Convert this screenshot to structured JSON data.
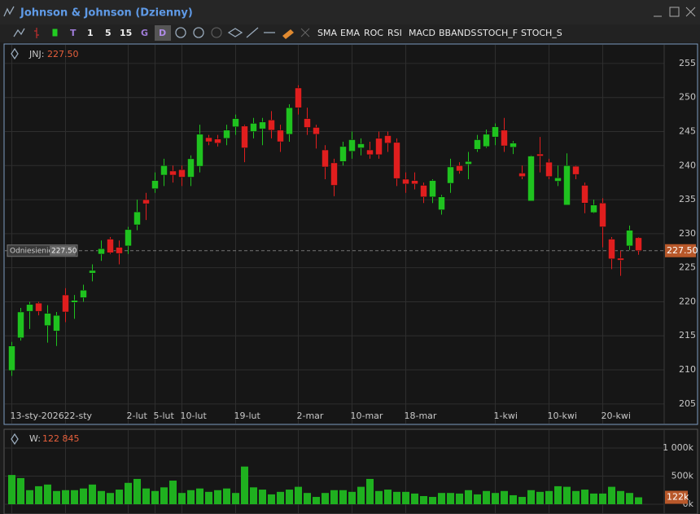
{
  "window": {
    "title": "Johnson & Johnson (Dzienny)"
  },
  "toolbar": {
    "items": [
      "T",
      "1",
      "5",
      "15",
      "G",
      "D",
      "SMA",
      "EMA",
      "ROC",
      "RSI",
      "MACD",
      "BBANDS",
      "STOCH_F",
      "STOCH_S"
    ]
  },
  "chart_data": {
    "type": "candlestick",
    "symbol": "JNJ:",
    "last_price_label": "227.50",
    "categories": [
      "13-sty-2026",
      null,
      null,
      null,
      null,
      null,
      "22-sty",
      null,
      null,
      null,
      null,
      null,
      null,
      "2-lut",
      null,
      null,
      "5-lut",
      null,
      null,
      "10-lut",
      null,
      null,
      null,
      null,
      null,
      "19-lut",
      null,
      null,
      null,
      null,
      null,
      null,
      "2-mar",
      null,
      null,
      null,
      null,
      null,
      "10-mar",
      null,
      null,
      null,
      null,
      null,
      "18-mar",
      null,
      null,
      null,
      null,
      null,
      null,
      null,
      null,
      null,
      "1-kwi",
      null,
      null,
      null,
      null,
      null,
      "10-kwi",
      null,
      null,
      null,
      null,
      null,
      "20-kwi",
      null,
      null,
      null,
      null
    ],
    "open": [
      209.9,
      214.7,
      218.6,
      219.8,
      216.5,
      215.7,
      221.0,
      219.9,
      220.6,
      224.2,
      227.0,
      229.2,
      228.0,
      228.2,
      231.3,
      235.0,
      236.6,
      238.6,
      239.2,
      239.4,
      238.3,
      239.9,
      244.1,
      243.9,
      244.0,
      245.7,
      245.8,
      245.0,
      245.4,
      246.7,
      245.2,
      244.6,
      251.4,
      246.9,
      245.6,
      242.3,
      240.4,
      240.6,
      242.1,
      242.6,
      242.3,
      244.0,
      244.4,
      243.4,
      238.0,
      237.8,
      237.1,
      235.4,
      233.5,
      237.4,
      240.0,
      240.2,
      242.4,
      242.8,
      244.2,
      245.2,
      242.7,
      238.9,
      234.8,
      241.7,
      240.5,
      237.7,
      234.2,
      239.9,
      237.1,
      233.1,
      234.5,
      229.2,
      226.4,
      228.2,
      229.4
    ],
    "high": [
      214.1,
      219.1,
      220.0,
      220.0,
      219.5,
      218.5,
      222.0,
      221.0,
      222.5,
      225.5,
      229.0,
      229.5,
      229.0,
      231.0,
      235.0,
      236.0,
      239.0,
      241.0,
      240.0,
      240.0,
      241.5,
      246.0,
      244.5,
      244.5,
      246.0,
      247.5,
      246.0,
      247.0,
      247.0,
      248.0,
      246.0,
      249.0,
      251.8,
      248.5,
      246.0,
      243.0,
      241.0,
      243.5,
      245.0,
      244.0,
      243.5,
      245.0,
      245.0,
      244.0,
      239.0,
      239.0,
      237.5,
      238.0,
      235.7,
      241.0,
      240.5,
      242.0,
      244.5,
      245.3,
      246.2,
      247.0,
      243.6,
      240.0,
      241.5,
      244.2,
      241.0,
      240.0,
      241.8,
      240.0,
      237.5,
      235.0,
      235.2,
      229.5,
      227.5,
      231.2,
      229.5
    ],
    "low": [
      209.1,
      214.3,
      216.0,
      218.0,
      214.0,
      213.5,
      217.0,
      217.5,
      220.0,
      223.0,
      226.0,
      227.0,
      225.5,
      227.0,
      230.5,
      232.0,
      236.0,
      237.0,
      237.5,
      237.0,
      237.0,
      239.0,
      243.0,
      242.8,
      243.0,
      244.5,
      240.5,
      244.0,
      243.0,
      244.0,
      242.0,
      243.5,
      247.5,
      244.5,
      242.5,
      238.0,
      235.5,
      240.0,
      241.0,
      241.5,
      241.0,
      241.0,
      242.0,
      237.0,
      236.0,
      236.5,
      234.5,
      234.5,
      232.8,
      236.0,
      238.8,
      238.0,
      242.0,
      242.6,
      243.0,
      242.0,
      241.7,
      238.0,
      234.8,
      239.0,
      238.0,
      237.0,
      234.2,
      238.0,
      233.0,
      233.0,
      228.0,
      224.8,
      223.8,
      227.6,
      226.9
    ],
    "close": [
      213.5,
      218.5,
      219.6,
      218.6,
      218.3,
      218.0,
      218.5,
      220.2,
      221.7,
      224.6,
      227.8,
      227.2,
      227.1,
      230.6,
      233.2,
      234.4,
      237.8,
      240.0,
      238.6,
      238.3,
      241.0,
      244.6,
      243.5,
      243.3,
      245.2,
      246.9,
      242.6,
      246.2,
      246.4,
      245.2,
      243.5,
      248.5,
      248.5,
      245.6,
      244.6,
      239.8,
      237.1,
      242.8,
      243.8,
      243.2,
      241.6,
      241.6,
      243.3,
      238.1,
      237.3,
      237.3,
      235.4,
      237.8,
      235.4,
      239.8,
      239.2,
      240.6,
      243.8,
      244.6,
      245.7,
      242.9,
      243.3,
      238.4,
      241.4,
      241.4,
      238.4,
      238.2,
      240.0,
      238.7,
      234.5,
      234.2,
      231.0,
      226.3,
      226.1,
      230.5,
      227.5
    ],
    "up_color": "#1fc21f",
    "down_color": "#e01e1e",
    "ylim": [
      204.5,
      257.5
    ],
    "yticks": [
      205,
      210,
      215,
      220,
      225,
      230,
      235,
      240,
      245,
      250,
      255
    ],
    "grid": true,
    "reference": {
      "label": "Odniesienie",
      "value": 227.5,
      "value_label": "227.50"
    },
    "volume": {
      "label": "W:",
      "value_label": "122 845",
      "badge_label": "122k",
      "color": "#1fb01f",
      "values": [
        520000,
        465000,
        250000,
        320000,
        350000,
        235000,
        250000,
        250000,
        280000,
        350000,
        235000,
        200000,
        260000,
        380000,
        450000,
        280000,
        235000,
        300000,
        420000,
        200000,
        250000,
        280000,
        220000,
        250000,
        280000,
        200000,
        670000,
        300000,
        260000,
        175000,
        220000,
        260000,
        310000,
        200000,
        130000,
        200000,
        250000,
        250000,
        220000,
        310000,
        450000,
        235000,
        260000,
        220000,
        220000,
        190000,
        145000,
        130000,
        200000,
        200000,
        190000,
        250000,
        175000,
        235000,
        200000,
        235000,
        160000,
        130000,
        250000,
        220000,
        235000,
        320000,
        310000,
        235000,
        260000,
        190000,
        190000,
        310000,
        235000,
        200000,
        122845
      ],
      "ylim": [
        0,
        1072000
      ],
      "yticks": [
        {
          "value": 0,
          "label": "0k"
        },
        {
          "value": 500000,
          "label": "500k"
        },
        {
          "value": 1000000,
          "label": "1 000k"
        }
      ]
    }
  }
}
